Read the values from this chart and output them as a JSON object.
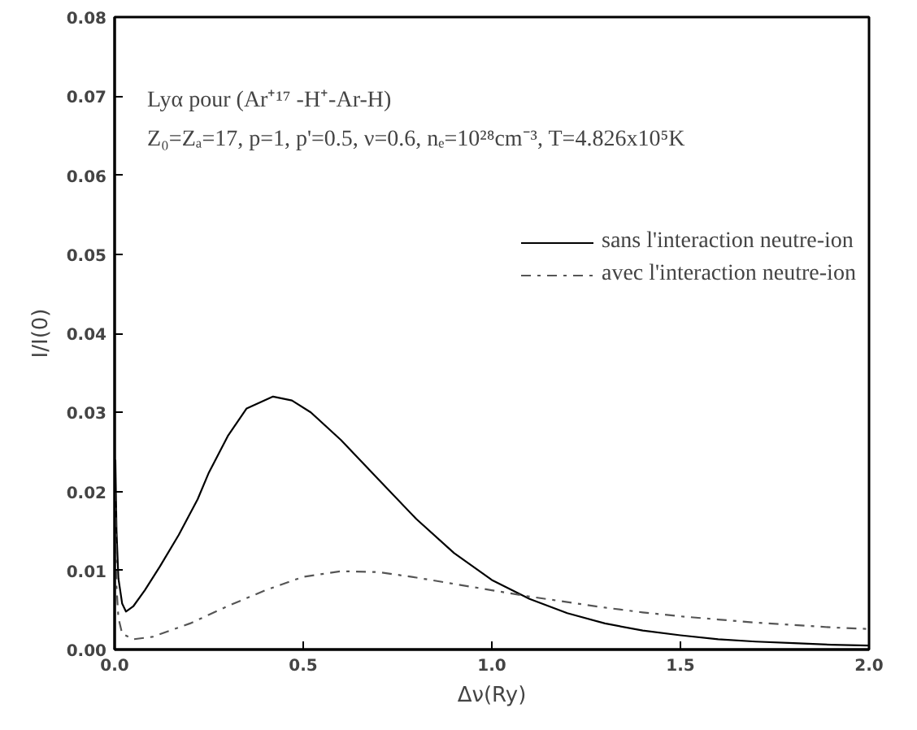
{
  "chart_data": {
    "type": "line",
    "xlabel": "Δν(Ry)",
    "ylabel": "I/I(0)",
    "annotations": [
      "Lyα pour (Ar⁺¹⁷ -H⁺-Ar-H)",
      "Z₀=Zₐ=17, p=1, p'=0.5, ν=0.6, nₑ=10²⁸cm⁻³, T=4.826x10⁵K"
    ],
    "xlim": [
      0,
      2
    ],
    "xticks": [
      {
        "value": 0,
        "label": "0.0"
      },
      0.5,
      {
        "value": 1,
        "label": "1.0"
      },
      1.5,
      {
        "value": 2,
        "label": "2.0"
      }
    ],
    "ylim": [
      0,
      0.08
    ],
    "yticks": [
      {
        "value": 0,
        "label": "0.00"
      },
      {
        "value": 0.01,
        "label": "0.01"
      },
      {
        "value": 0.02,
        "label": "0.02"
      },
      {
        "value": 0.03,
        "label": "0.03"
      },
      {
        "value": 0.04,
        "label": "0.04"
      },
      {
        "value": 0.05,
        "label": "0.05"
      },
      {
        "value": 0.06,
        "label": "0.06"
      },
      {
        "value": 0.07,
        "label": "0.07"
      },
      {
        "value": 0.08,
        "label": "0.08"
      }
    ],
    "grid": false,
    "legend": "top right",
    "series": [
      {
        "name": "sans l'interaction neutre-ion",
        "color": "#000000",
        "line_style": "solid",
        "x": [
          0.002,
          0.005,
          0.01,
          0.02,
          0.03,
          0.05,
          0.08,
          0.12,
          0.17,
          0.22,
          0.25,
          0.3,
          0.35,
          0.42,
          0.47,
          0.52,
          0.6,
          0.7,
          0.8,
          0.9,
          1.0,
          1.1,
          1.2,
          1.3,
          1.4,
          1.5,
          1.6,
          1.7,
          1.8,
          1.9,
          2.0
        ],
        "values": [
          0.024,
          0.015,
          0.009,
          0.0058,
          0.0048,
          0.0055,
          0.0075,
          0.0105,
          0.0145,
          0.019,
          0.0224,
          0.027,
          0.0305,
          0.032,
          0.0315,
          0.03,
          0.0265,
          0.0215,
          0.0165,
          0.0122,
          0.0088,
          0.0064,
          0.0046,
          0.0033,
          0.0024,
          0.0018,
          0.0013,
          0.001,
          0.0008,
          0.0006,
          0.0005
        ]
      },
      {
        "name": "avec l'interaction neutre-ion",
        "color": "#555555",
        "line_style": "dashed",
        "x": [
          0.002,
          0.005,
          0.01,
          0.02,
          0.05,
          0.1,
          0.2,
          0.3,
          0.4,
          0.5,
          0.6,
          0.7,
          0.8,
          0.9,
          1.0,
          1.1,
          1.2,
          1.3,
          1.4,
          1.5,
          1.6,
          1.7,
          1.8,
          1.9,
          2.0
        ],
        "values": [
          0.02,
          0.008,
          0.004,
          0.002,
          0.0013,
          0.0016,
          0.0033,
          0.0055,
          0.0075,
          0.0092,
          0.0099,
          0.0098,
          0.0091,
          0.0083,
          0.0075,
          0.0067,
          0.006,
          0.0053,
          0.0047,
          0.0042,
          0.0038,
          0.0034,
          0.0031,
          0.0028,
          0.0026
        ]
      }
    ]
  }
}
